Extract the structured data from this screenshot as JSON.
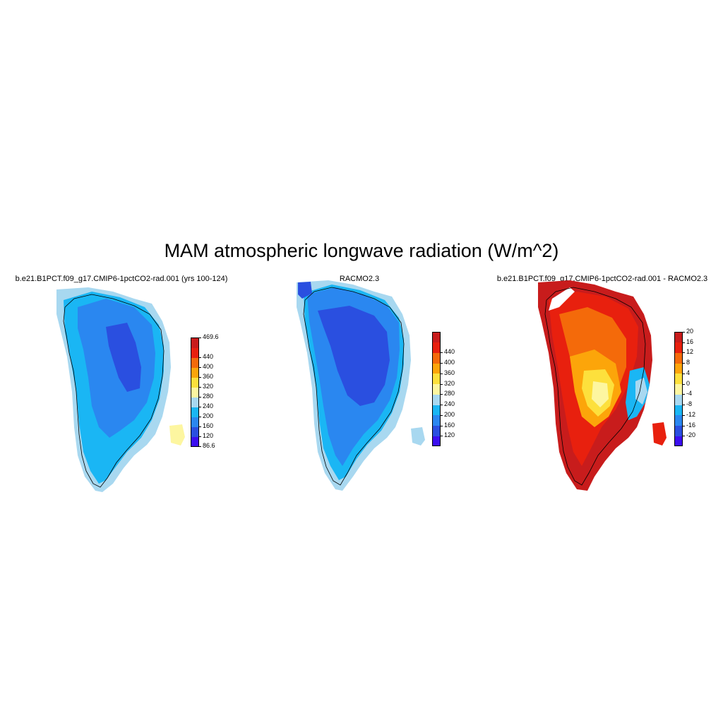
{
  "title": "MAM atmospheric longwave radiation (W/m^2)",
  "panels": [
    {
      "title": "b.e21.B1PCT.f09_g17.CMIP6-1pctCO2-rad.001 (yrs 100-124)",
      "colorbar": {
        "colors": [
          "#3b0ef0",
          "#2a4fe0",
          "#2a87f0",
          "#1ab6f4",
          "#a8d8f0",
          "#fdf6a0",
          "#fde03c",
          "#fca50a",
          "#f46a0a",
          "#e8200e",
          "#c81c1c"
        ],
        "labels": [
          "86.6",
          "120",
          "160",
          "200",
          "240",
          "280",
          "320",
          "360",
          "400",
          "440",
          "469.6"
        ]
      }
    },
    {
      "title": "RACMO2.3",
      "colorbar": {
        "colors": [
          "#3b0ef0",
          "#2a4fe0",
          "#2a87f0",
          "#1ab6f4",
          "#a8d8f0",
          "#fdf6a0",
          "#fde03c",
          "#fca50a",
          "#f46a0a",
          "#e8200e",
          "#c81c1c"
        ],
        "labels": [
          "120",
          "160",
          "200",
          "240",
          "280",
          "320",
          "360",
          "400",
          "440"
        ]
      }
    },
    {
      "title": "b.e21.B1PCT.f09_g17.CMIP6-1pctCO2-rad.001 - RACMO2.3",
      "colorbar": {
        "colors": [
          "#3b0ef0",
          "#2a4fe0",
          "#2a87f0",
          "#1ab6f4",
          "#a8d8f0",
          "#fdf6a0",
          "#fde03c",
          "#fca50a",
          "#f46a0a",
          "#e8200e",
          "#c81c1c"
        ],
        "labels": [
          "-20",
          "-16",
          "-12",
          "-8",
          "-4",
          "0",
          "4",
          "8",
          "12",
          "16",
          "20"
        ]
      }
    }
  ]
}
